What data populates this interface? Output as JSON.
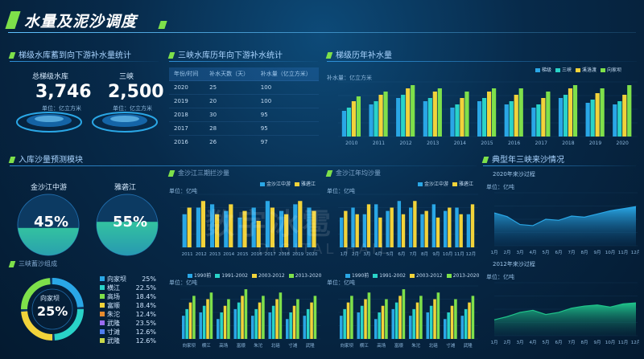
{
  "header": {
    "title": "水量及泥沙调度"
  },
  "sections": {
    "s1": "梯级水库蓄到向下游补水量统计",
    "s2": "三峡水库历年向下游补水统计",
    "s3": "梯级历年补水量",
    "s4": "入库沙量预测模块",
    "s5": "典型年三峡来沙情况",
    "s6": "金沙江三期拦沙量",
    "s7": "金沙江年均沙量",
    "s8": "三峡蓄沙组成"
  },
  "stats": {
    "left": {
      "label": "总梯级水库",
      "value": "3,746",
      "unit": "单位：亿立方米"
    },
    "right": {
      "label": "三峡",
      "value": "2,500",
      "unit": "单位：亿立方米"
    }
  },
  "table": {
    "headers": [
      "年份/时间",
      "补水天数（天）",
      "补水量（亿立方米）"
    ],
    "rows": [
      [
        "2020",
        "25",
        "100"
      ],
      [
        "2019",
        "20",
        "100"
      ],
      [
        "2018",
        "30",
        "95"
      ],
      [
        "2017",
        "28",
        "95"
      ],
      [
        "2016",
        "26",
        "97"
      ]
    ]
  },
  "colors": {
    "blue": "#2aa7e6",
    "yellow": "#f2d33a",
    "green": "#7ee04a",
    "cyan": "#29d3c8",
    "accent": "#7ee04a"
  },
  "charts": {
    "annual": {
      "unit": "补水量：亿立方米",
      "legend": [
        "梯级",
        "三峡",
        "溪洛渡",
        "向家坝"
      ],
      "years": [
        "2010",
        "2011",
        "2012",
        "2013",
        "2014",
        "2015",
        "2016",
        "2017",
        "2018",
        "2019",
        "2020"
      ],
      "values": [
        [
          16,
          20,
          24,
          22,
          18,
          22,
          20,
          18,
          24,
          21,
          20
        ],
        [
          18,
          22,
          26,
          24,
          20,
          24,
          22,
          20,
          26,
          23,
          22
        ],
        [
          22,
          26,
          30,
          28,
          24,
          28,
          26,
          24,
          30,
          27,
          26
        ],
        [
          25,
          28,
          32,
          30,
          28,
          30,
          30,
          28,
          32,
          30,
          32
        ]
      ]
    },
    "mid1": {
      "unit": "单位：亿吨",
      "legend": [
        "金沙江中游",
        "雅砻江"
      ],
      "years": [
        "2011",
        "2012",
        "2013",
        "2014",
        "2015",
        "2016",
        "2017",
        "2018",
        "2019",
        "2020"
      ],
      "values": [
        [
          20,
          24,
          26,
          22,
          18,
          24,
          28,
          22,
          26,
          24
        ],
        [
          24,
          28,
          20,
          26,
          22,
          16,
          24,
          20,
          28,
          22
        ]
      ]
    },
    "mid2": {
      "unit": "单位：亿吨",
      "legend": [
        "金沙江中游",
        "雅砻江"
      ],
      "years": [
        "1月",
        "2月",
        "3月",
        "4月",
        "5月",
        "6月",
        "7月",
        "8月",
        "9月",
        "10月",
        "11月",
        "12月"
      ],
      "values": [
        [
          18,
          24,
          20,
          26,
          22,
          28,
          24,
          20,
          26,
          22,
          24,
          20
        ],
        [
          22,
          20,
          26,
          18,
          24,
          20,
          28,
          22,
          18,
          24,
          20,
          26
        ]
      ]
    },
    "bot1": {
      "unit": "单位：亿吨",
      "legend": [
        "1990前",
        "1991-2002",
        "2003-2012",
        "2013-2020"
      ],
      "cats": [
        "向家坝",
        "横江",
        "高场",
        "富顺",
        "朱沱",
        "北碚",
        "寸滩",
        "武隆"
      ],
      "values": [
        [
          14,
          16,
          12,
          18,
          14,
          16,
          12,
          14
        ],
        [
          18,
          20,
          16,
          22,
          18,
          20,
          16,
          18
        ],
        [
          22,
          24,
          20,
          26,
          22,
          24,
          20,
          22
        ],
        [
          26,
          28,
          24,
          30,
          26,
          28,
          24,
          26
        ]
      ]
    },
    "bot2": {
      "unit": "单位：亿吨",
      "legend": [
        "1990前",
        "1991-2002",
        "2003-2012",
        "2013-2020"
      ],
      "cats": [
        "向家坝",
        "横江",
        "高场",
        "富顺",
        "朱沱",
        "北碚",
        "寸滩",
        "武隆"
      ],
      "values": [
        [
          14,
          16,
          12,
          18,
          14,
          16,
          12,
          14
        ],
        [
          18,
          20,
          16,
          22,
          18,
          20,
          16,
          18
        ],
        [
          22,
          24,
          20,
          26,
          22,
          24,
          20,
          22
        ],
        [
          26,
          28,
          24,
          30,
          26,
          28,
          24,
          26
        ]
      ]
    },
    "area1": {
      "title": "2020年来沙过程",
      "unit": "单位：亿吨",
      "months": [
        "1月",
        "2月",
        "3月",
        "4月",
        "5月",
        "6月",
        "7月",
        "8月",
        "9月",
        "10月",
        "11月",
        "12月"
      ],
      "values": [
        0.62,
        0.55,
        0.4,
        0.38,
        0.5,
        0.48,
        0.56,
        0.54,
        0.6,
        0.66,
        0.7,
        0.74
      ]
    },
    "area2": {
      "title": "2012年来沙过程",
      "unit": "单位：亿吨",
      "months": [
        "1月",
        "2月",
        "3月",
        "4月",
        "5月",
        "6月",
        "7月",
        "8月",
        "9月",
        "10月",
        "11月",
        "12月"
      ],
      "values": [
        0.3,
        0.36,
        0.44,
        0.48,
        0.4,
        0.44,
        0.52,
        0.56,
        0.58,
        0.54,
        0.6,
        0.62
      ]
    }
  },
  "gauges": {
    "left": {
      "label": "金沙江中游",
      "value": "45%",
      "level": 0.45
    },
    "right": {
      "label": "雅砻江",
      "value": "55%",
      "level": 0.55
    }
  },
  "ring": {
    "center_label": "向家坝",
    "center_value": "25%",
    "items": [
      {
        "name": "向家坝",
        "value": "25%",
        "color": "#2aa7e6"
      },
      {
        "name": "横江",
        "value": "22.5%",
        "color": "#29d3c8"
      },
      {
        "name": "高场",
        "value": "18.4%",
        "color": "#7ee04a"
      },
      {
        "name": "富顺",
        "value": "18.4%",
        "color": "#f2d33a"
      },
      {
        "name": "朱沱",
        "value": "12.4%",
        "color": "#e58a2e"
      },
      {
        "name": "武隆",
        "value": "23.5%",
        "color": "#9b6cf0"
      },
      {
        "name": "寸滩",
        "value": "12.6%",
        "color": "#4f7df0"
      },
      {
        "name": "武隆",
        "value": "12.6%",
        "color": "#c8d84a"
      }
    ]
  },
  "watermark": {
    "line1": "数字冰雹",
    "line2": "DIGITAL HAIL"
  }
}
